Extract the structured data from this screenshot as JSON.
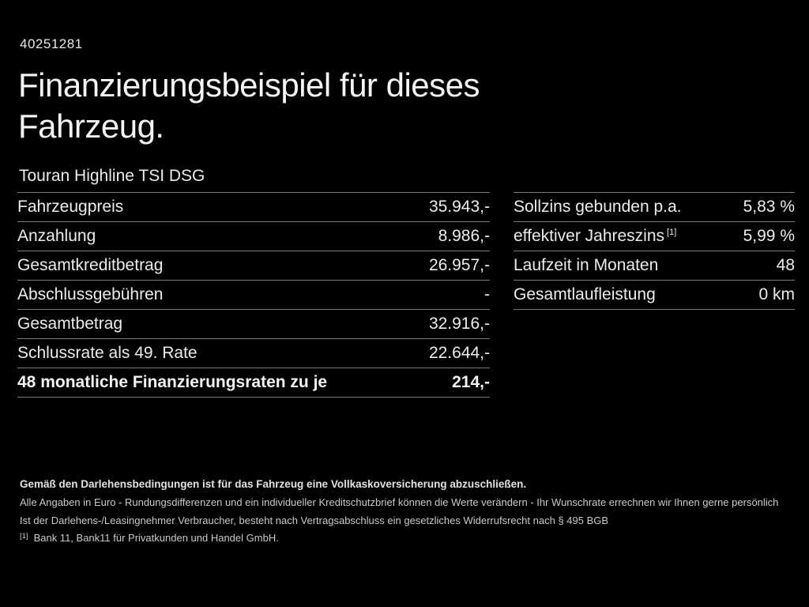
{
  "page": {
    "doc_number": "40251281",
    "title": "Finanzierungsbeispiel für dieses\nFahrzeug.",
    "subtitle": "Touran Highline TSI DSG"
  },
  "finance_table": {
    "rows": [
      {
        "label": "Fahrzeugpreis",
        "value": "35.943,-"
      },
      {
        "label": "Anzahlung",
        "value": "8.986,-"
      },
      {
        "label": "Gesamtkreditbetrag",
        "value": "26.957,-"
      },
      {
        "label": "Abschlussgebühren",
        "value": "-"
      },
      {
        "label": "Gesamtbetrag",
        "value": "32.916,-"
      },
      {
        "label": "Schlussrate als 49. Rate",
        "value": "22.644,-"
      },
      {
        "label": "48 monatliche Finanzierungsraten zu je",
        "value": "214,-",
        "bold": true
      }
    ]
  },
  "conditions_table": {
    "rows": [
      {
        "label": "Sollzins gebunden p.a.",
        "value": "5,83 %"
      },
      {
        "label": "effektiver Jahreszins",
        "label_sup": "[1]",
        "value": "5,99 %"
      },
      {
        "label": "Laufzeit in Monaten",
        "value": "48"
      },
      {
        "label": "Gesamtlaufleistung",
        "value": "0 km"
      }
    ]
  },
  "footer": {
    "line1": "Gemäß den Darlehensbedingungen ist für das Fahrzeug eine Vollkaskoversicherung abzuschließen.",
    "line2": "Alle Angaben in Euro - Rundungsdifferenzen und ein individueller Kreditschutzbrief können die Werte verändern - Ihr Wunschrate errechnen wir Ihnen gerne persönlich",
    "line3": "Ist der Darlehens-/Leasingnehmer Verbraucher, besteht nach Vertragsabschluss ein gesetzliches Widerrufsrecht nach § 495 BGB",
    "footnote_marker": "[1]",
    "footnote_text": "Bank 11, Bank11 für Privatkunden und Handel GmbH."
  },
  "colors": {
    "background": "#000000",
    "text": "#ececec",
    "divider": "#7a7a7a"
  }
}
